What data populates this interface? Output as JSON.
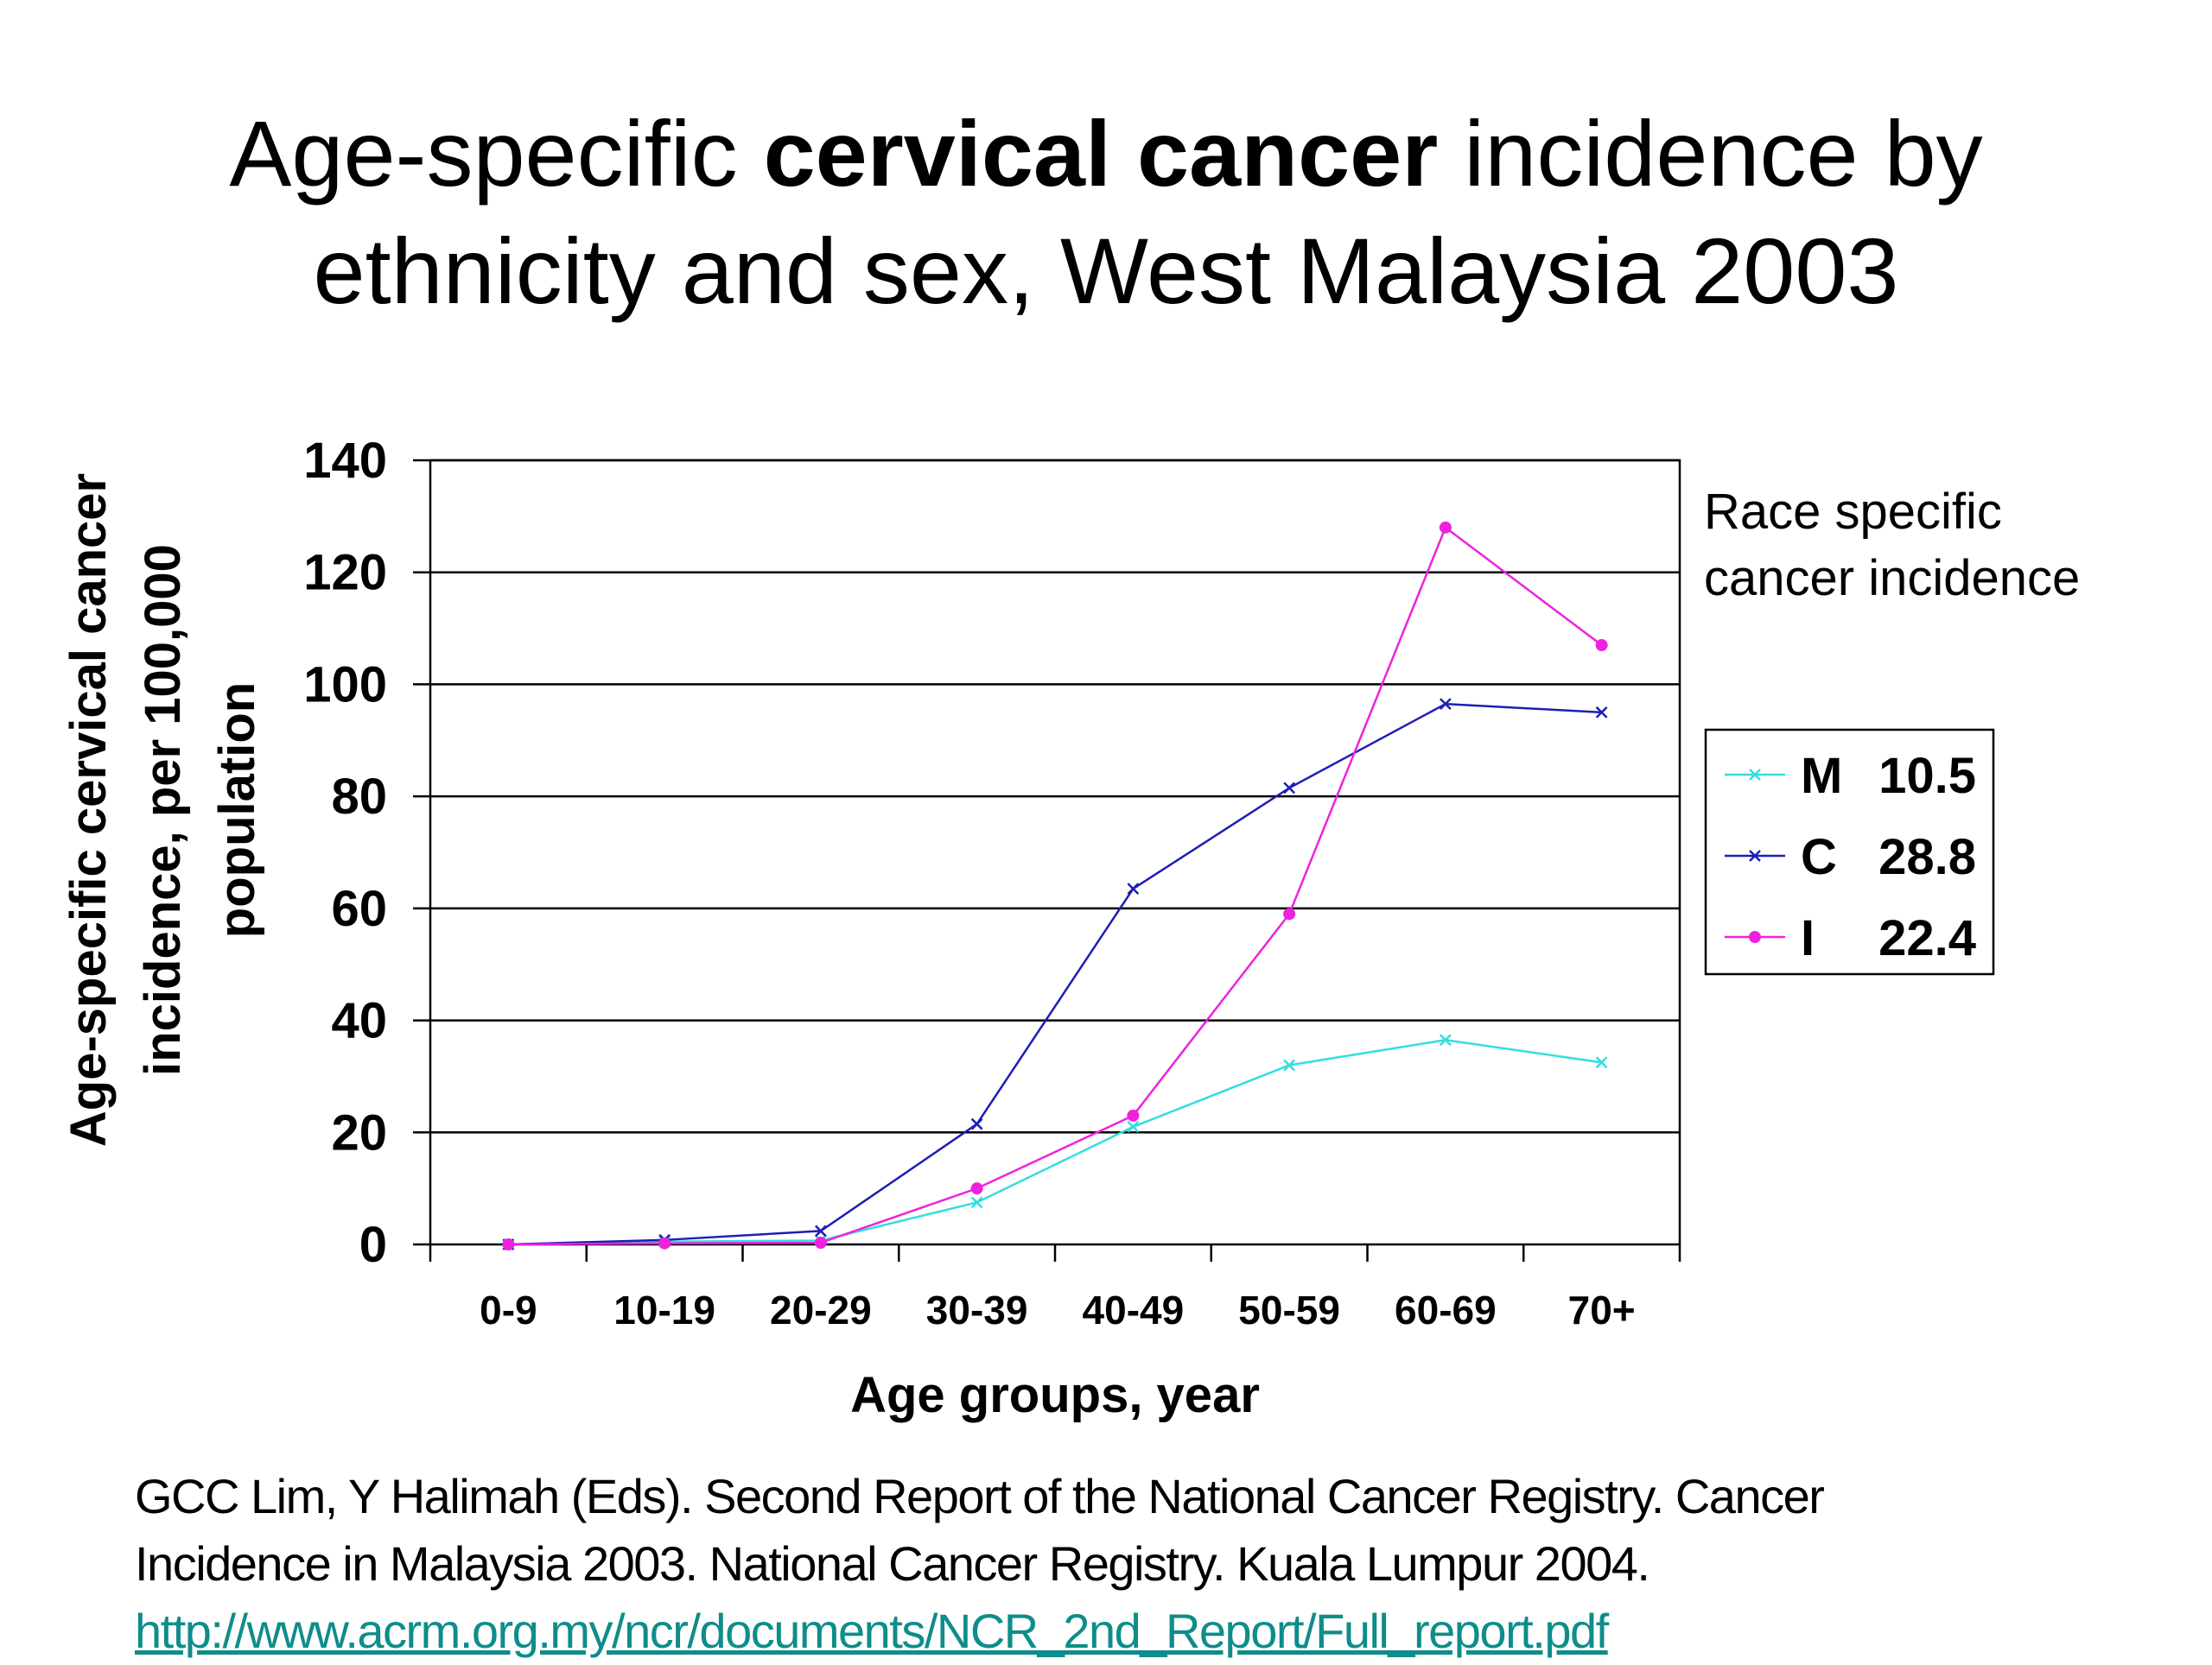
{
  "title": {
    "line1_pre": "Age-specific ",
    "line1_bold": "cervical cancer",
    "line1_post": " incidence by",
    "line2": "ethnicity and sex, West Malaysia 2003"
  },
  "citation": {
    "line1": "GCC Lim, Y Halimah (Eds). Second Report of the National Cancer Registry. Cancer",
    "line2": "Incidence in Malaysia 2003. National Cancer Registry. Kuala Lumpur 2004.",
    "link": "http://www.acrm.org.my/ncr/documents/NCR_2nd_Report/Full_report.pdf"
  },
  "chart_data": {
    "type": "line",
    "ylabel_lines": [
      "Age-specific cervical cancer",
      "incidence, per 100,000",
      "population"
    ],
    "xlabel": "Age groups, year",
    "categories": [
      "0-9",
      "10-19",
      "20-29",
      "30-39",
      "40-49",
      "50-59",
      "60-69",
      "70+"
    ],
    "ylim": [
      0,
      140
    ],
    "yticks": [
      0,
      20,
      40,
      60,
      80,
      100,
      120,
      140
    ],
    "grid": true,
    "legend_title_lines": [
      "Race specific",
      "cancer incidence"
    ],
    "legend_position": "right",
    "series": [
      {
        "name": "M",
        "legend_value": "10.5",
        "color": "#33dede",
        "marker": "x",
        "values": [
          0,
          0.5,
          0.7,
          7.5,
          21,
          32,
          36.5,
          32.5
        ]
      },
      {
        "name": "C",
        "legend_value": "28.8",
        "color": "#1e1eb4",
        "marker": "x",
        "values": [
          0,
          0.8,
          2.4,
          21.5,
          63.5,
          81.5,
          96.5,
          95
        ]
      },
      {
        "name": "I",
        "legend_value": "22.4",
        "color": "#ee22dd",
        "marker": "dot",
        "values": [
          0,
          0.2,
          0.3,
          10,
          23,
          59,
          128,
          107
        ]
      }
    ]
  }
}
